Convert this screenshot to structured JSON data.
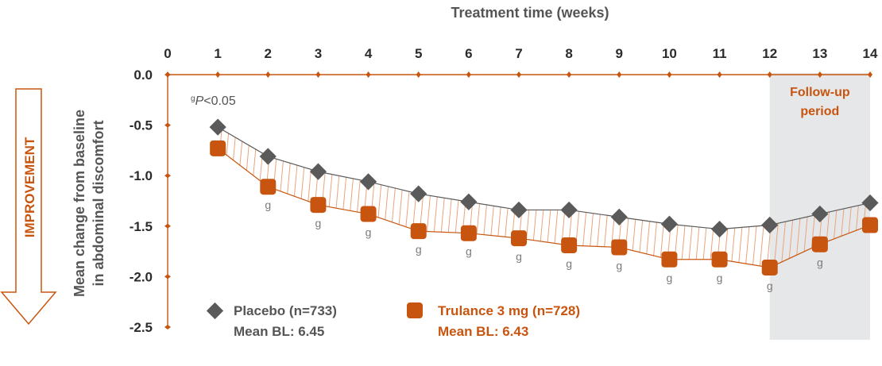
{
  "chart_data": {
    "type": "line",
    "title": "",
    "xlabel": "Treatment time (weeks)",
    "ylabel_lines": [
      "Mean change from baseline",
      "in abdominal discomfort"
    ],
    "x": [
      1,
      2,
      3,
      4,
      5,
      6,
      7,
      8,
      9,
      10,
      11,
      12,
      13,
      14
    ],
    "x_ticks": [
      "0",
      "1",
      "2",
      "3",
      "4",
      "5",
      "6",
      "7",
      "8",
      "9",
      "10",
      "11",
      "12",
      "13",
      "14"
    ],
    "xlim": [
      0,
      14
    ],
    "y_ticks": [
      "0.0",
      "-0.5",
      "-1.0",
      "-1.5",
      "-2.0",
      "-2.5"
    ],
    "ylim": [
      -2.5,
      0
    ],
    "series": [
      {
        "name": "Placebo (n=733)",
        "baseline": "Mean BL: 6.45",
        "color": "#5a5a5a",
        "marker": "diamond",
        "values": [
          -0.52,
          -0.81,
          -0.96,
          -1.06,
          -1.18,
          -1.26,
          -1.34,
          -1.34,
          -1.41,
          -1.48,
          -1.53,
          -1.49,
          -1.38,
          -1.27
        ]
      },
      {
        "name": "Trulance 3 mg (n=728)",
        "baseline": "Mean BL: 6.43",
        "color": "#c8550f",
        "marker": "rounded-square",
        "values": [
          -0.73,
          -1.11,
          -1.29,
          -1.38,
          -1.55,
          -1.57,
          -1.62,
          -1.69,
          -1.71,
          -1.83,
          -1.83,
          -1.91,
          -1.68,
          -1.49
        ]
      }
    ],
    "significance": {
      "label": "g",
      "weeks": [
        2,
        3,
        4,
        5,
        6,
        7,
        8,
        9,
        10,
        11,
        12,
        13
      ]
    },
    "footnote_superscript": "g",
    "footnote_symbol": "P",
    "footnote_value": "<0.05",
    "follow_up": {
      "label_lines": [
        "Follow-up",
        "period"
      ],
      "start_week": 12,
      "end_week": 14,
      "fill_color": "#e6e7e9"
    },
    "direction_label": "IMPROVEMENT",
    "accent_color": "#c8550f"
  }
}
